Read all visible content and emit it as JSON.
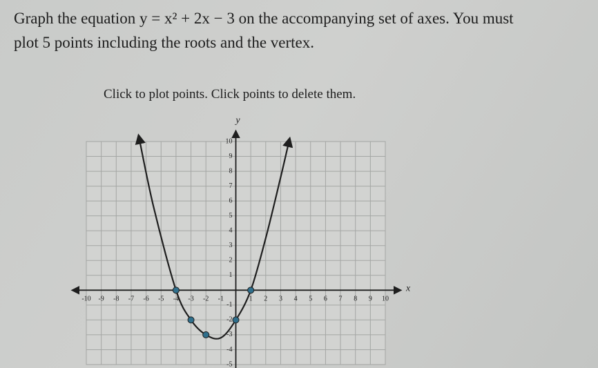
{
  "prompt": {
    "line1": "Graph the equation y = x² + 2x − 3 on the accompanying set of axes. You must",
    "line2": "plot 5 points including the roots and the vertex."
  },
  "instruction": "Click to plot points. Click points to delete them.",
  "chart_data": {
    "type": "line",
    "x_label": "x",
    "y_label": "y",
    "xlim": [
      -10,
      10
    ],
    "ylim": [
      -5,
      10
    ],
    "xticks": [
      -10,
      -9,
      -8,
      -7,
      -6,
      -5,
      -4,
      -3,
      -2,
      -1,
      1,
      2,
      3,
      4,
      5,
      6,
      7,
      8,
      9,
      10
    ],
    "yticks": [
      -5,
      -4,
      -3,
      -2,
      -1,
      1,
      2,
      3,
      4,
      5,
      6,
      7,
      8,
      9,
      10
    ],
    "grid": true,
    "series": [
      {
        "color": "#1e1e1e",
        "markers": false,
        "x": [
          -6.5,
          -5.5,
          -4,
          -3,
          -2,
          -1,
          0,
          1,
          2,
          3,
          3.6
        ],
        "values": [
          10.4,
          5.6,
          0,
          -2,
          -3,
          -3.2,
          -2,
          0,
          3.5,
          7.6,
          10.2
        ]
      },
      {
        "color": "#2f6f8c",
        "markers": true,
        "x": [
          -4,
          -3,
          -2,
          0,
          1
        ],
        "values": [
          0,
          -2,
          -3,
          -2,
          0
        ]
      }
    ]
  }
}
